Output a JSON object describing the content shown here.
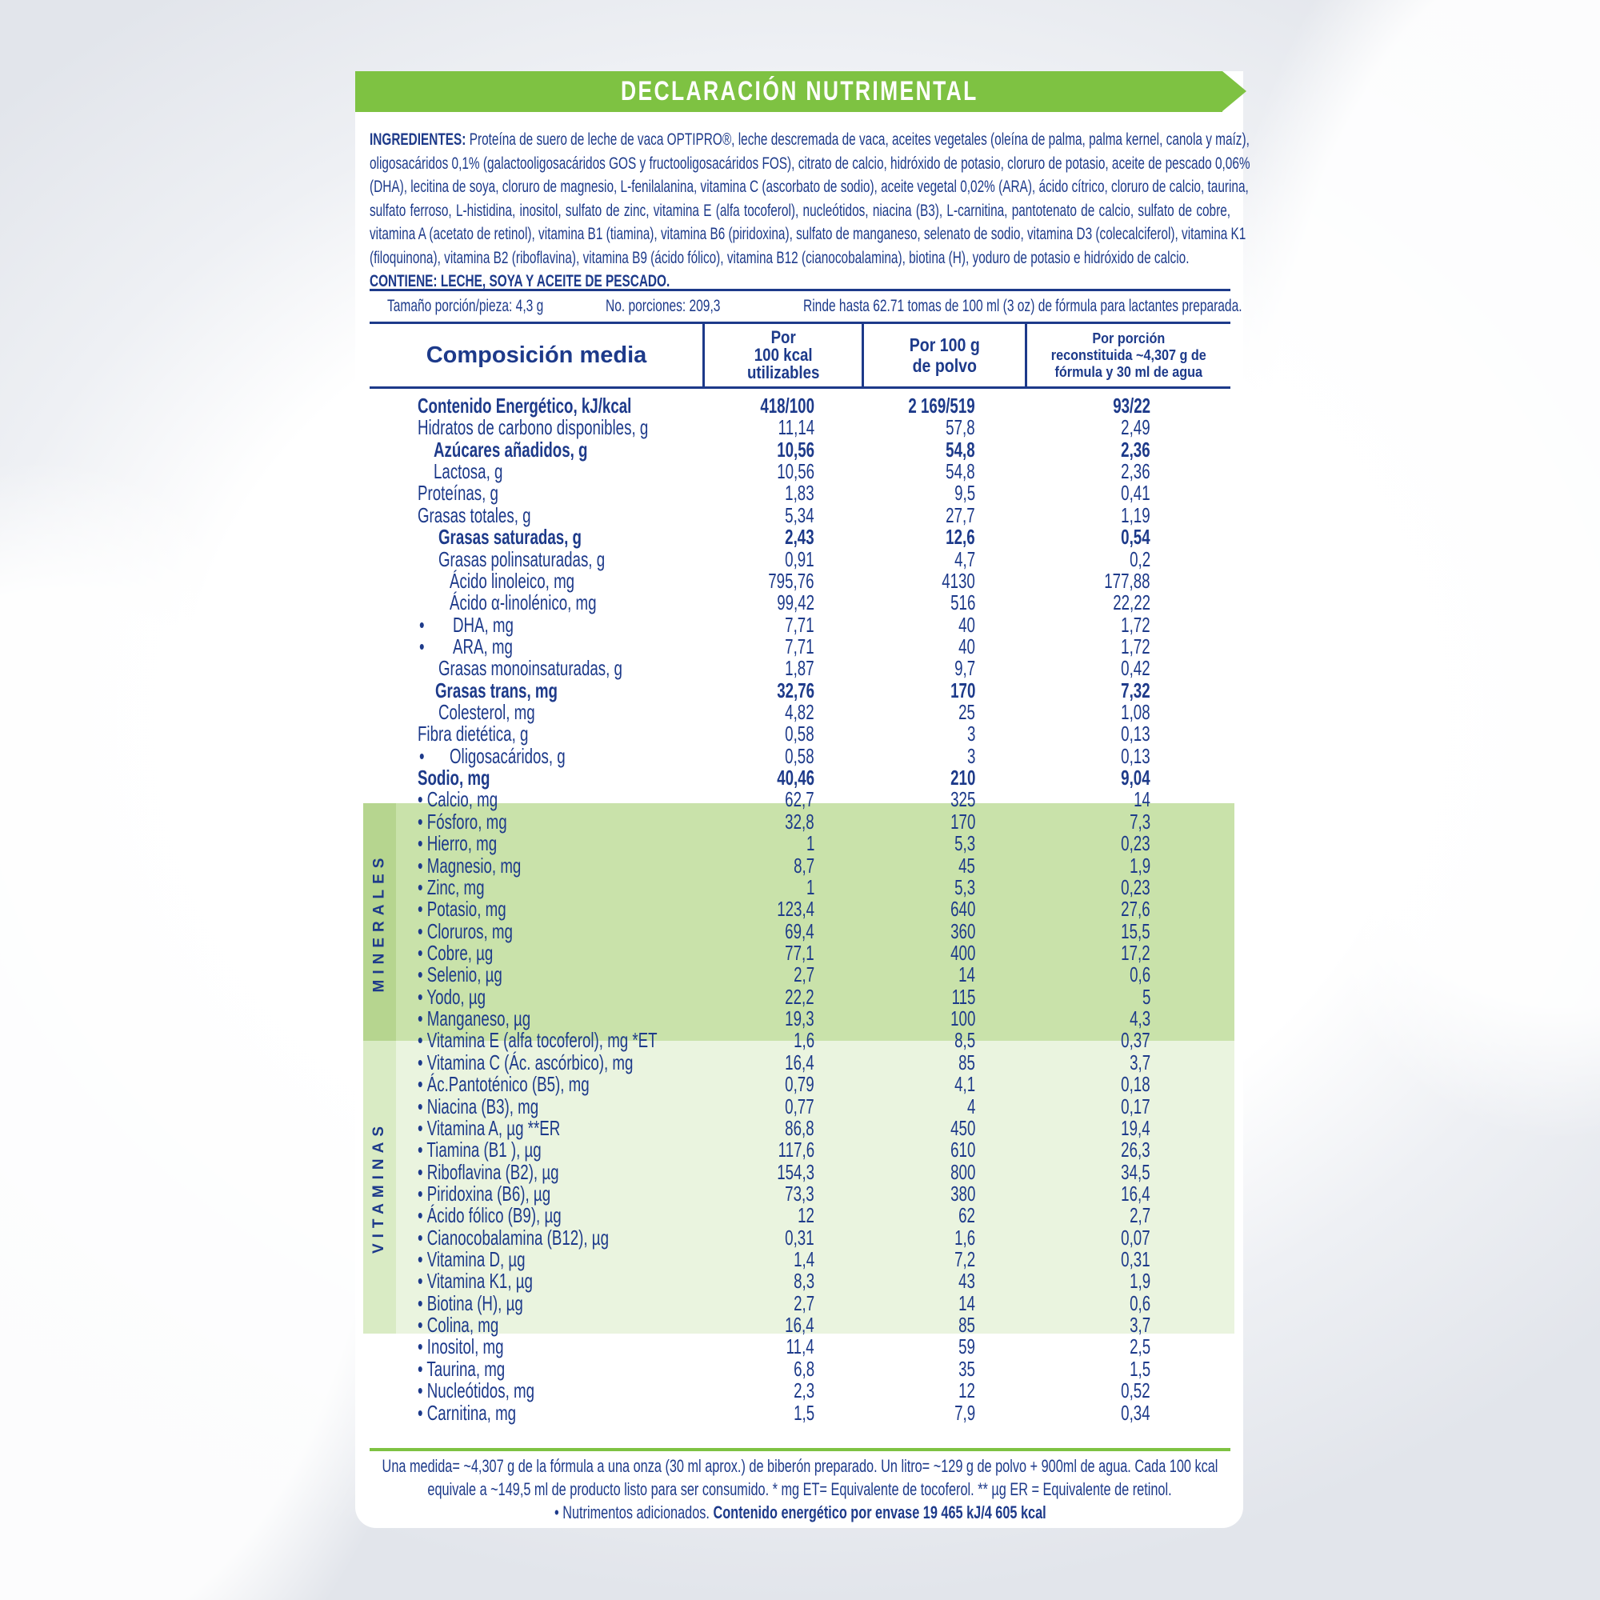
{
  "colors": {
    "brand_green": "#7ec242",
    "text_navy": "#1d3a8a",
    "minerals_band": "#c9e2aa",
    "vitamins_band": "#eaf4df",
    "side_label": "#b6d58f"
  },
  "title": "DECLARACIÓN NUTRIMENTAL",
  "ingredients": {
    "label": "INGREDIENTES:",
    "lines": [
      "Proteína de suero de leche de vaca OPTIPRO®, leche descremada de vaca, aceites vegetales (oleína de palma, palma kernel, canola y maíz),",
      "oligosacáridos 0,1% (galactooligosacáridos GOS y fructooligosacáridos FOS), citrato de calcio, hidróxido de potasio, cloruro de potasio, aceite de pescado 0,06%",
      "(DHA), lecitina de soya, cloruro de magnesio, L-fenilalanina, vitamina C (ascorbato de sodio), aceite vegetal 0,02% (ARA), ácido cítrico, cloruro de calcio, taurina,",
      "sulfato ferroso, L-histidina, inositol, sulfato de zinc, vitamina E (alfa tocoferol), nucleótidos, niacina (B3), L-carnitina, pantotenato de calcio, sulfato de cobre,",
      "vitamina A (acetato de retinol), vitamina B1 (tiamina), vitamina B6 (piridoxina), sulfato de manganeso, selenato de sodio, vitamina D3 (colecalciferol), vitamina K1",
      "(filoquinona), vitamina B2 (riboflavina), vitamina B9 (ácido fólico), vitamina B12 (cianocobalamina), biotina (H), yoduro de potasio e hidróxido de calcio."
    ],
    "contains": "CONTIENE: LECHE, SOYA Y ACEITE DE PESCADO."
  },
  "serving": {
    "size": "Tamaño porción/pieza: 4,3 g",
    "servings": "No. porciones: 209,3",
    "yield": "Rinde hasta 62.71 tomas de 100 ml (3 oz) de fórmula para lactantes preparada."
  },
  "table": {
    "headers": [
      "Composición media",
      [
        "Por",
        "100 kcal",
        "utilizables"
      ],
      [
        "Por 100 g",
        "de polvo"
      ],
      [
        "Por porción",
        "reconstituida ~4,307 g de",
        "fórmula y 30 ml de agua"
      ]
    ],
    "sections": {
      "minerals": "MINERALES",
      "vitamins": "VITAMINAS"
    },
    "rows": [
      {
        "label": "Contenido Energético, kJ/kcal",
        "v": [
          "418/100",
          "2 169/519",
          "93/22"
        ],
        "bold": true,
        "level": 0
      },
      {
        "label": "Hidratos de carbono disponibles, g",
        "v": [
          "11,14",
          "57,8",
          "2,49"
        ],
        "level": 0
      },
      {
        "label": "Azúcares añadidos, g",
        "v": [
          "10,56",
          "54,8",
          "2,36"
        ],
        "bold": true,
        "level": 1
      },
      {
        "label": "Lactosa, g",
        "v": [
          "10,56",
          "54,8",
          "2,36"
        ],
        "level": 1
      },
      {
        "label": "Proteínas, g",
        "v": [
          "1,83",
          "9,5",
          "0,41"
        ],
        "level": 0
      },
      {
        "label": "Grasas totales, g",
        "v": [
          "5,34",
          "27,7",
          "1,19"
        ],
        "level": 0
      },
      {
        "label": "Grasas saturadas, g",
        "v": [
          "2,43",
          "12,6",
          "0,54"
        ],
        "bold": true,
        "level": 1.3
      },
      {
        "label": "Grasas polinsaturadas, g",
        "v": [
          "0,91",
          "4,7",
          "0,2"
        ],
        "level": 1.3
      },
      {
        "label": "Ácido linoleico, mg",
        "v": [
          "795,76",
          "4130",
          "177,88"
        ],
        "level": 2
      },
      {
        "label": "Ácido α-linolénico, mg",
        "v": [
          "99,42",
          "516",
          "22,22"
        ],
        "level": 2
      },
      {
        "label": "DHA, mg",
        "v": [
          "7,71",
          "40",
          "1,72"
        ],
        "level": 2.2,
        "bullet": true
      },
      {
        "label": "ARA, mg",
        "v": [
          "7,71",
          "40",
          "1,72"
        ],
        "level": 2.2,
        "bullet": true
      },
      {
        "label": "Grasas monoinsaturadas, g",
        "v": [
          "1,87",
          "9,7",
          "0,42"
        ],
        "level": 1.3
      },
      {
        "label": "Grasas trans, mg",
        "v": [
          "32,76",
          "170",
          "7,32"
        ],
        "bold": true,
        "level": 1.1
      },
      {
        "label": "Colesterol, mg",
        "v": [
          "4,82",
          "25",
          "1,08"
        ],
        "level": 1.3
      },
      {
        "label": "Fibra dietética, g",
        "v": [
          "0,58",
          "3",
          "0,13"
        ],
        "level": 0
      },
      {
        "label": "Oligosacáridos, g",
        "v": [
          "0,58",
          "3",
          "0,13"
        ],
        "level": 2,
        "bullet": true
      },
      {
        "label": "Sodio, mg",
        "v": [
          "40,46",
          "210",
          "9,04"
        ],
        "bold": true,
        "level": 0
      },
      {
        "label": "• Calcio, mg",
        "v": [
          "62,7",
          "325",
          "14"
        ],
        "level": 0
      },
      {
        "label": "• Fósforo, mg",
        "v": [
          "32,8",
          "170",
          "7,3"
        ],
        "level": 0
      },
      {
        "label": "• Hierro, mg",
        "v": [
          "1",
          "5,3",
          "0,23"
        ],
        "level": 0
      },
      {
        "label": "• Magnesio, mg",
        "v": [
          "8,7",
          "45",
          "1,9"
        ],
        "level": 0
      },
      {
        "label": "• Zinc, mg",
        "v": [
          "1",
          "5,3",
          "0,23"
        ],
        "level": 0
      },
      {
        "label": "• Potasio, mg",
        "v": [
          "123,4",
          "640",
          "27,6"
        ],
        "level": 0
      },
      {
        "label": "• Cloruros, mg",
        "v": [
          "69,4",
          "360",
          "15,5"
        ],
        "level": 0
      },
      {
        "label": "• Cobre, µg",
        "v": [
          "77,1",
          "400",
          "17,2"
        ],
        "level": 0
      },
      {
        "label": "• Selenio, µg",
        "v": [
          "2,7",
          "14",
          "0,6"
        ],
        "level": 0
      },
      {
        "label": "• Yodo, µg",
        "v": [
          "22,2",
          "115",
          "5"
        ],
        "level": 0
      },
      {
        "label": "• Manganeso, µg",
        "v": [
          "19,3",
          "100",
          "4,3"
        ],
        "level": 0
      },
      {
        "label": "• Vitamina E (alfa tocoferol), mg *ET",
        "v": [
          "1,6",
          "8,5",
          "0,37"
        ],
        "level": 0
      },
      {
        "label": "• Vitamina C (Ác. ascórbico), mg",
        "v": [
          "16,4",
          "85",
          "3,7"
        ],
        "level": 0
      },
      {
        "label": "• Ác.Pantoténico (B5), mg",
        "v": [
          "0,79",
          "4,1",
          "0,18"
        ],
        "level": 0
      },
      {
        "label": "• Niacina (B3), mg",
        "v": [
          "0,77",
          "4",
          "0,17"
        ],
        "level": 0
      },
      {
        "label": "• Vitamina A, µg **ER",
        "v": [
          "86,8",
          "450",
          "19,4"
        ],
        "level": 0
      },
      {
        "label": "• Tiamina (B1 ), µg",
        "v": [
          "117,6",
          "610",
          "26,3"
        ],
        "level": 0
      },
      {
        "label": "• Riboflavina (B2), µg",
        "v": [
          "154,3",
          "800",
          "34,5"
        ],
        "level": 0
      },
      {
        "label": "• Piridoxina (B6), µg",
        "v": [
          "73,3",
          "380",
          "16,4"
        ],
        "level": 0
      },
      {
        "label": "• Ácido fólico (B9), µg",
        "v": [
          "12",
          "62",
          "2,7"
        ],
        "level": 0
      },
      {
        "label": "• Cianocobalamina (B12), µg",
        "v": [
          "0,31",
          "1,6",
          "0,07"
        ],
        "level": 0
      },
      {
        "label": "• Vitamina D, µg",
        "v": [
          "1,4",
          "7,2",
          "0,31"
        ],
        "level": 0
      },
      {
        "label": "• Vitamina K1, µg",
        "v": [
          "8,3",
          "43",
          "1,9"
        ],
        "level": 0
      },
      {
        "label": "• Biotina (H), µg",
        "v": [
          "2,7",
          "14",
          "0,6"
        ],
        "level": 0
      },
      {
        "label": "• Colina, mg",
        "v": [
          "16,4",
          "85",
          "3,7"
        ],
        "level": 0
      },
      {
        "label": "• Inositol, mg",
        "v": [
          "11,4",
          "59",
          "2,5"
        ],
        "level": 0
      },
      {
        "label": "• Taurina, mg",
        "v": [
          "6,8",
          "35",
          "1,5"
        ],
        "level": 0
      },
      {
        "label": "• Nucleótidos, mg",
        "v": [
          "2,3",
          "12",
          "0,52"
        ],
        "level": 0
      },
      {
        "label": "• Carnitina, mg",
        "v": [
          "1,5",
          "7,9",
          "0,34"
        ],
        "level": 0
      }
    ]
  },
  "footer": {
    "line1": "Una medida= ~4,307 g de la fórmula a una onza (30 ml aprox.) de biberón preparado. Un litro= ~129 g de polvo + 900ml de agua. Cada 100 kcal",
    "line2": "equivale a ~149,5 ml de producto listo para ser consumido. * mg ET= Equivalente de tocoferol.  ** µg ER = Equivalente de retinol.",
    "line3_a": "• Nutrimentos adicionados.",
    "line3_b": "Contenido energético por envase 19 465 kJ/4 605 kcal"
  }
}
